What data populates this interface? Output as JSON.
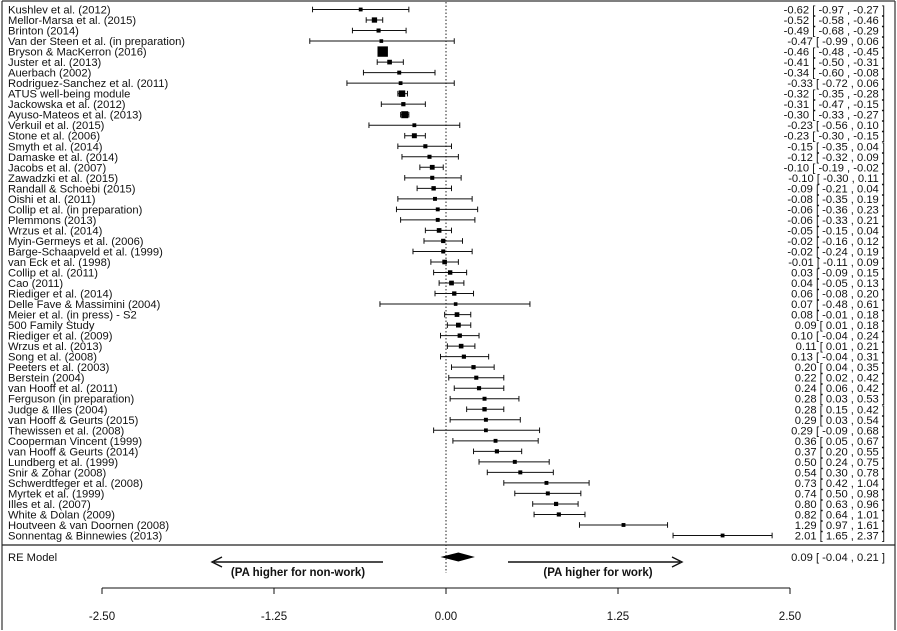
{
  "chart_data": {
    "type": "forest",
    "xlim": [
      -2.5,
      2.5
    ],
    "xticks": [
      "-2.50",
      "-1.25",
      "0.00",
      "1.25",
      "2.50"
    ],
    "reference_line": 0,
    "summary": {
      "label": "RE Model",
      "estimate": 0.09,
      "lower": -0.04,
      "upper": 0.21,
      "ci_text": "0.09 [ -0.04 ,  0.21 ]"
    },
    "left_direction_label": "(PA higher for non-work)",
    "right_direction_label": "(PA higher for work)",
    "studies": [
      {
        "label": "Kushlev et al. (2012)",
        "est": -0.62,
        "lo": -0.97,
        "hi": -0.27,
        "ci_text": "-0.62 [ -0.97 , -0.27 ]"
      },
      {
        "label": "Mellor-Marsa et al. (2015)",
        "est": -0.52,
        "lo": -0.58,
        "hi": -0.46,
        "ci_text": "-0.52 [ -0.58 , -0.46 ]"
      },
      {
        "label": "Brinton (2014)",
        "est": -0.49,
        "lo": -0.68,
        "hi": -0.29,
        "ci_text": "-0.49 [ -0.68 , -0.29 ]"
      },
      {
        "label": "Van der Steen et al. (in preparation)",
        "est": -0.47,
        "lo": -0.99,
        "hi": 0.06,
        "ci_text": "-0.47 [ -0.99 ,  0.06 ]"
      },
      {
        "label": "Bryson & MacKerron (2016)",
        "est": -0.46,
        "lo": -0.48,
        "hi": -0.45,
        "ci_text": "-0.46 [ -0.48 , -0.45 ]"
      },
      {
        "label": "Juster et al. (2013)",
        "est": -0.41,
        "lo": -0.5,
        "hi": -0.31,
        "ci_text": "-0.41 [ -0.50 , -0.31 ]"
      },
      {
        "label": "Auerbach (2002)",
        "est": -0.34,
        "lo": -0.6,
        "hi": -0.08,
        "ci_text": "-0.34 [ -0.60 , -0.08 ]"
      },
      {
        "label": "Rodriguez-Sanchez et al. (2011)",
        "est": -0.33,
        "lo": -0.72,
        "hi": 0.06,
        "ci_text": "-0.33 [ -0.72 ,  0.06 ]"
      },
      {
        "label": "ATUS well-being module",
        "est": -0.32,
        "lo": -0.35,
        "hi": -0.28,
        "ci_text": "-0.32 [ -0.35 , -0.28 ]"
      },
      {
        "label": "Jackowska et al. (2012)",
        "est": -0.31,
        "lo": -0.47,
        "hi": -0.15,
        "ci_text": "-0.31 [ -0.47 , -0.15 ]"
      },
      {
        "label": "Ayuso-Mateos et al. (2013)",
        "est": -0.3,
        "lo": -0.33,
        "hi": -0.27,
        "ci_text": "-0.30 [ -0.33 , -0.27 ]"
      },
      {
        "label": "Verkuil et al. (2015)",
        "est": -0.23,
        "lo": -0.56,
        "hi": 0.1,
        "ci_text": "-0.23 [ -0.56 ,  0.10 ]"
      },
      {
        "label": "Stone et al. (2006)",
        "est": -0.23,
        "lo": -0.3,
        "hi": -0.15,
        "ci_text": "-0.23 [ -0.30 , -0.15 ]"
      },
      {
        "label": "Smyth et al. (2014)",
        "est": -0.15,
        "lo": -0.35,
        "hi": 0.04,
        "ci_text": "-0.15 [ -0.35 ,  0.04 ]"
      },
      {
        "label": "Damaske et al. (2014)",
        "est": -0.12,
        "lo": -0.32,
        "hi": 0.09,
        "ci_text": "-0.12 [ -0.32 ,  0.09 ]"
      },
      {
        "label": "Jacobs et al. (2007)",
        "est": -0.1,
        "lo": -0.19,
        "hi": -0.02,
        "ci_text": "-0.10 [ -0.19 , -0.02 ]"
      },
      {
        "label": "Zawadzki et al. (2015)",
        "est": -0.1,
        "lo": -0.3,
        "hi": 0.11,
        "ci_text": "-0.10 [ -0.30 ,  0.11 ]"
      },
      {
        "label": "Randall & Schoebi (2015)",
        "est": -0.09,
        "lo": -0.21,
        "hi": 0.04,
        "ci_text": "-0.09 [ -0.21 ,  0.04 ]"
      },
      {
        "label": "Oishi et al. (2011)",
        "est": -0.08,
        "lo": -0.35,
        "hi": 0.19,
        "ci_text": "-0.08 [ -0.35 ,  0.19 ]"
      },
      {
        "label": "Collip et al. (in preparation)",
        "est": -0.06,
        "lo": -0.36,
        "hi": 0.23,
        "ci_text": "-0.06 [ -0.36 ,  0.23 ]"
      },
      {
        "label": "Plemmons (2013)",
        "est": -0.06,
        "lo": -0.33,
        "hi": 0.21,
        "ci_text": "-0.06 [ -0.33 ,  0.21 ]"
      },
      {
        "label": "Wrzus et al. (2014)",
        "est": -0.05,
        "lo": -0.15,
        "hi": 0.04,
        "ci_text": "-0.05 [ -0.15 ,  0.04 ]"
      },
      {
        "label": "Myin-Germeys et al. (2006)",
        "est": -0.02,
        "lo": -0.16,
        "hi": 0.12,
        "ci_text": "-0.02 [ -0.16 ,  0.12 ]"
      },
      {
        "label": "Barge-Schaapveld et al. (1999)",
        "est": -0.02,
        "lo": -0.24,
        "hi": 0.19,
        "ci_text": "-0.02 [ -0.24 ,  0.19 ]"
      },
      {
        "label": "van Eck et al. (1998)",
        "est": -0.01,
        "lo": -0.11,
        "hi": 0.09,
        "ci_text": "-0.01 [ -0.11 ,  0.09 ]"
      },
      {
        "label": "Collip et al. (2011)",
        "est": 0.03,
        "lo": -0.09,
        "hi": 0.15,
        "ci_text": " 0.03 [ -0.09 ,  0.15 ]"
      },
      {
        "label": "Cao (2011)",
        "est": 0.04,
        "lo": -0.05,
        "hi": 0.13,
        "ci_text": " 0.04 [ -0.05 ,  0.13 ]"
      },
      {
        "label": "Riediger et al. (2014)",
        "est": 0.06,
        "lo": -0.08,
        "hi": 0.2,
        "ci_text": " 0.06 [ -0.08 ,  0.20 ]"
      },
      {
        "label": "Delle Fave & Massimini (2004)",
        "est": 0.07,
        "lo": -0.48,
        "hi": 0.61,
        "ci_text": " 0.07 [ -0.48 ,  0.61 ]"
      },
      {
        "label": "Meier et al. (in press) - S2",
        "est": 0.08,
        "lo": -0.01,
        "hi": 0.18,
        "ci_text": " 0.08 [ -0.01 ,  0.18 ]"
      },
      {
        "label": "500 Family Study",
        "est": 0.09,
        "lo": 0.01,
        "hi": 0.18,
        "ci_text": " 0.09 [  0.01 ,  0.18 ]"
      },
      {
        "label": "Riediger et al. (2009)",
        "est": 0.1,
        "lo": -0.04,
        "hi": 0.24,
        "ci_text": " 0.10 [ -0.04 ,  0.24 ]"
      },
      {
        "label": "Wrzus et al. (2013)",
        "est": 0.11,
        "lo": 0.01,
        "hi": 0.21,
        "ci_text": " 0.11 [  0.01 ,  0.21 ]"
      },
      {
        "label": "Song et al. (2008)",
        "est": 0.13,
        "lo": -0.04,
        "hi": 0.31,
        "ci_text": " 0.13 [ -0.04 ,  0.31 ]"
      },
      {
        "label": "Peeters et al. (2003)",
        "est": 0.2,
        "lo": 0.04,
        "hi": 0.35,
        "ci_text": " 0.20 [  0.04 ,  0.35 ]"
      },
      {
        "label": "Berstein (2004)",
        "est": 0.22,
        "lo": 0.02,
        "hi": 0.42,
        "ci_text": " 0.22 [  0.02 ,  0.42 ]"
      },
      {
        "label": "van Hooff et al. (2011)",
        "est": 0.24,
        "lo": 0.06,
        "hi": 0.42,
        "ci_text": " 0.24 [  0.06 ,  0.42 ]"
      },
      {
        "label": "Ferguson (in preparation)",
        "est": 0.28,
        "lo": 0.03,
        "hi": 0.53,
        "ci_text": " 0.28 [  0.03 ,  0.53 ]"
      },
      {
        "label": "Judge & Illes (2004)",
        "est": 0.28,
        "lo": 0.15,
        "hi": 0.42,
        "ci_text": " 0.28 [  0.15 ,  0.42 ]"
      },
      {
        "label": "van Hooff & Geurts (2015)",
        "est": 0.29,
        "lo": 0.03,
        "hi": 0.54,
        "ci_text": " 0.29 [  0.03 ,  0.54 ]"
      },
      {
        "label": "Thewissen et al. (2008)",
        "est": 0.29,
        "lo": -0.09,
        "hi": 0.68,
        "ci_text": " 0.29 [ -0.09 ,  0.68 ]"
      },
      {
        "label": "Cooperman Vincent (1999)",
        "est": 0.36,
        "lo": 0.05,
        "hi": 0.67,
        "ci_text": " 0.36 [  0.05 ,  0.67 ]"
      },
      {
        "label": "van Hooff & Geurts (2014)",
        "est": 0.37,
        "lo": 0.2,
        "hi": 0.55,
        "ci_text": " 0.37 [  0.20 ,  0.55 ]"
      },
      {
        "label": "Lundberg et al. (1999)",
        "est": 0.5,
        "lo": 0.24,
        "hi": 0.75,
        "ci_text": " 0.50 [  0.24 ,  0.75 ]"
      },
      {
        "label": "Snir & Zohar (2008)",
        "est": 0.54,
        "lo": 0.3,
        "hi": 0.78,
        "ci_text": " 0.54 [  0.30 ,  0.78 ]"
      },
      {
        "label": "Schwerdtfeger et al. (2008)",
        "est": 0.73,
        "lo": 0.42,
        "hi": 1.04,
        "ci_text": " 0.73 [  0.42 ,  1.04 ]"
      },
      {
        "label": "Myrtek et al. (1999)",
        "est": 0.74,
        "lo": 0.5,
        "hi": 0.98,
        "ci_text": " 0.74 [  0.50 ,  0.98 ]"
      },
      {
        "label": "Illes et al. (2007)",
        "est": 0.8,
        "lo": 0.63,
        "hi": 0.96,
        "ci_text": " 0.80 [  0.63 ,  0.96 ]"
      },
      {
        "label": "White & Dolan (2009)",
        "est": 0.82,
        "lo": 0.64,
        "hi": 1.01,
        "ci_text": " 0.82 [  0.64 ,  1.01 ]"
      },
      {
        "label": "Houtveen & van Doornen (2008)",
        "est": 1.29,
        "lo": 0.97,
        "hi": 1.61,
        "ci_text": " 1.29 [  0.97 ,  1.61 ]"
      },
      {
        "label": "Sonnentag & Binnewies (2013)",
        "est": 2.01,
        "lo": 1.65,
        "hi": 2.37,
        "ci_text": " 2.01 [  1.65 ,  2.37 ]"
      }
    ]
  }
}
